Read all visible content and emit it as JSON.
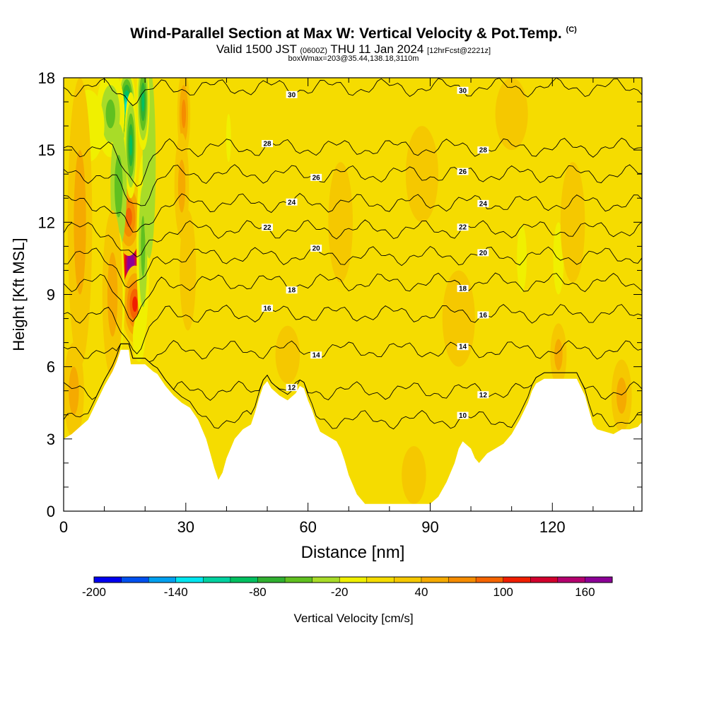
{
  "header": {
    "title_main": "Wind-Parallel Section at Max W: Vertical Velocity & Pot.Temp.",
    "title_mark": "(C)",
    "valid_a": "Valid 1500 JST",
    "valid_b": "(0600Z)",
    "valid_c": "THU 11 Jan 2024",
    "valid_d": "[12hrFcst@2221z]",
    "box_line": "boxWmax=203@35.44,138.18,3110m"
  },
  "chart_data": {
    "type": "heatmap",
    "xlabel": "Distance [nm]",
    "ylabel": "Height [Kft MSL]",
    "xlim": [
      0,
      142
    ],
    "ylim": [
      0,
      18
    ],
    "x_ticks": [
      0,
      30,
      60,
      90,
      120
    ],
    "y_ticks": [
      0,
      3,
      6,
      9,
      12,
      15,
      18
    ],
    "colorbar": {
      "label": "Vertical Velocity [cm/s]",
      "tick_labels": [
        "-200",
        "-140",
        "-80",
        "-20",
        "40",
        "100",
        "160"
      ],
      "tick_values": [
        -200,
        -140,
        -80,
        -20,
        40,
        100,
        160
      ],
      "range": [
        -200,
        180
      ],
      "colors": [
        "#0000f0",
        "#0050f0",
        "#00a0f0",
        "#00e6f0",
        "#00d2a0",
        "#00c060",
        "#30b030",
        "#60c020",
        "#a8dc28",
        "#f0f000",
        "#f5dc00",
        "#f5c800",
        "#f5aa00",
        "#f58c00",
        "#f56400",
        "#f01e00",
        "#d2002d",
        "#b4006e",
        "#8c0096"
      ]
    },
    "terrain_kft": [
      [
        0,
        3.0
      ],
      [
        2,
        3.2
      ],
      [
        4,
        3.5
      ],
      [
        6,
        3.8
      ],
      [
        8,
        4.5
      ],
      [
        10,
        5.2
      ],
      [
        12,
        5.8
      ],
      [
        13,
        6.2
      ],
      [
        14,
        6.7
      ],
      [
        16,
        6.7
      ],
      [
        16.5,
        6.1
      ],
      [
        18,
        6.1
      ],
      [
        20,
        6.1
      ],
      [
        22,
        5.8
      ],
      [
        23,
        5.7
      ],
      [
        25,
        5.2
      ],
      [
        27,
        4.8
      ],
      [
        29,
        4.5
      ],
      [
        31,
        4.3
      ],
      [
        33,
        3.8
      ],
      [
        35,
        3.0
      ],
      [
        36,
        2.4
      ],
      [
        37,
        1.8
      ],
      [
        38,
        1.3
      ],
      [
        39,
        1.6
      ],
      [
        40,
        2.2
      ],
      [
        42,
        3.0
      ],
      [
        44,
        3.4
      ],
      [
        46,
        3.6
      ],
      [
        47,
        4.1
      ],
      [
        48,
        4.7
      ],
      [
        49,
        5.2
      ],
      [
        50,
        5.4
      ],
      [
        51,
        5.1
      ],
      [
        53,
        4.8
      ],
      [
        55,
        4.6
      ],
      [
        57,
        4.9
      ],
      [
        58,
        5.2
      ],
      [
        59,
        5.1
      ],
      [
        60,
        4.6
      ],
      [
        61,
        4.2
      ],
      [
        62,
        3.7
      ],
      [
        63,
        3.3
      ],
      [
        65,
        3.1
      ],
      [
        67,
        2.9
      ],
      [
        68,
        2.6
      ],
      [
        69,
        2.1
      ],
      [
        70,
        1.5
      ],
      [
        71,
        1.1
      ],
      [
        72,
        0.7
      ],
      [
        74,
        0.3
      ],
      [
        76,
        0.3
      ],
      [
        80,
        0.3
      ],
      [
        84,
        0.3
      ],
      [
        88,
        0.3
      ],
      [
        90,
        0.3
      ],
      [
        92,
        0.6
      ],
      [
        94,
        1.2
      ],
      [
        96,
        2.0
      ],
      [
        97,
        2.6
      ],
      [
        98,
        2.9
      ],
      [
        100,
        2.6
      ],
      [
        101,
        2.2
      ],
      [
        102,
        2.0
      ],
      [
        103,
        2.2
      ],
      [
        104,
        2.4
      ],
      [
        106,
        2.6
      ],
      [
        108,
        2.8
      ],
      [
        110,
        3.2
      ],
      [
        112,
        3.8
      ],
      [
        114,
        4.5
      ],
      [
        115,
        5.0
      ],
      [
        116,
        5.3
      ],
      [
        118,
        5.5
      ],
      [
        122,
        5.5
      ],
      [
        126,
        5.5
      ],
      [
        128,
        4.8
      ],
      [
        129,
        4.2
      ],
      [
        130,
        3.6
      ],
      [
        131,
        3.4
      ],
      [
        133,
        3.3
      ],
      [
        135,
        3.2
      ],
      [
        137,
        3.4
      ],
      [
        139,
        3.4
      ],
      [
        141,
        3.5
      ],
      [
        142,
        3.7
      ]
    ],
    "theta_contours": [
      {
        "label": "10",
        "y_kft": 3.8
      },
      {
        "label": "12",
        "y_kft": 5.0
      },
      {
        "label": "14",
        "y_kft": 6.7
      },
      {
        "label": "16",
        "y_kft": 8.2
      },
      {
        "label": "18",
        "y_kft": 9.5
      },
      {
        "label": "20",
        "y_kft": 10.6
      },
      {
        "label": "22",
        "y_kft": 11.7
      },
      {
        "label": "24",
        "y_kft": 12.8
      },
      {
        "label": "26",
        "y_kft": 14.0
      },
      {
        "label": "28",
        "y_kft": 15.1
      },
      {
        "label": "30",
        "y_kft": 17.6
      }
    ],
    "updraft_core": {
      "x_nm": 16.5,
      "y_kft": 10.2,
      "w_cms": 203
    },
    "downdraft_core": {
      "x_nm": 15.5,
      "y_kft": 16.8,
      "w_cms": -140
    }
  }
}
